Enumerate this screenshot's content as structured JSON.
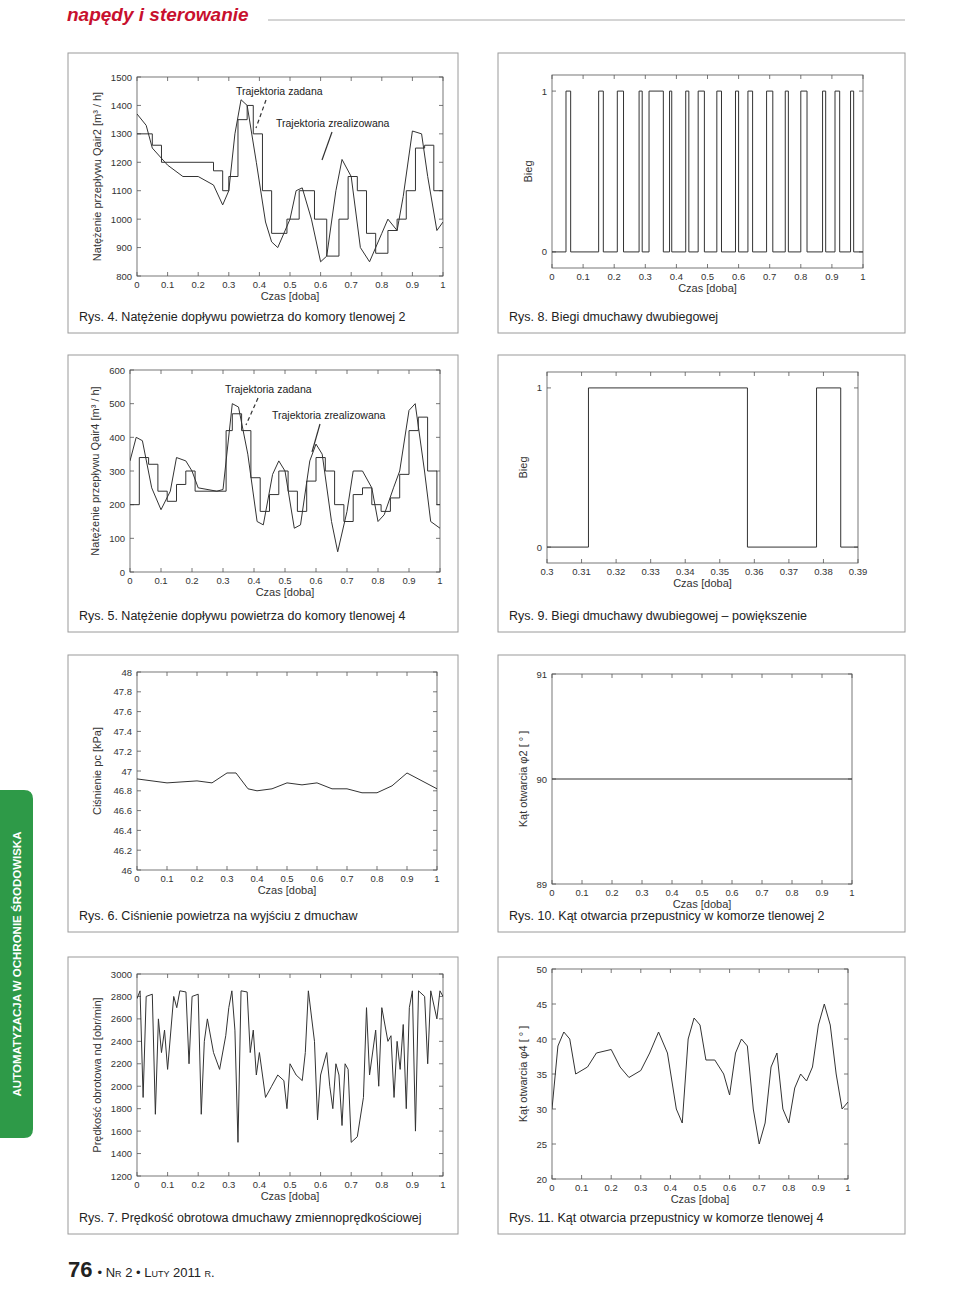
{
  "header": {
    "title": "napędy i sterowanie"
  },
  "side_label": "AUTOMATYZACJA W OCHRONIE ŚRODOWISKA",
  "footer": {
    "page": "76",
    "issue": "• Nr 2 • Luty 2011 r."
  },
  "chart_data": [
    {
      "type": "line",
      "title": "Rys. 4. Natężenie dopływu powietrza do komory tlenowej 2",
      "x_label": "Czas [doba]",
      "y_label": "Natężenie przepływu Qair2 [m³ / h]",
      "xlim": [
        0,
        1
      ],
      "xticks": [
        0,
        0.1,
        0.2,
        0.3,
        0.4,
        0.5,
        0.6,
        0.7,
        0.8,
        0.9,
        1
      ],
      "ylim": [
        800,
        1500
      ],
      "yticks": [
        800,
        900,
        1000,
        1100,
        1200,
        1300,
        1400,
        1500
      ],
      "grid": false,
      "color": "#333333",
      "series": [
        {
          "name": "Trajektoria zadana",
          "color": "#333333",
          "line_style": "solid",
          "x": [
            0,
            0.03,
            0.05,
            0.1,
            0.15,
            0.2,
            0.25,
            0.28,
            0.3,
            0.32,
            0.34,
            0.36,
            0.39,
            0.42,
            0.44,
            0.46,
            0.5,
            0.52,
            0.54,
            0.57,
            0.6,
            0.62,
            0.65,
            0.67,
            0.7,
            0.73,
            0.76,
            0.8,
            0.82,
            0.85,
            0.87,
            0.9,
            0.93,
            0.95,
            0.98,
            1
          ],
          "values": [
            1370,
            1330,
            1250,
            1190,
            1150,
            1150,
            1120,
            1050,
            1100,
            1300,
            1420,
            1400,
            1200,
            990,
            920,
            900,
            1000,
            1100,
            1110,
            1000,
            850,
            870,
            1100,
            1210,
            1150,
            900,
            850,
            950,
            1000,
            960,
            1080,
            1310,
            1300,
            1150,
            960,
            990
          ]
        },
        {
          "name": "Trajektoria zrealizowana",
          "color": "#333333",
          "line_style": "step",
          "x": [
            0,
            0.05,
            0.08,
            0.25,
            0.28,
            0.3,
            0.33,
            0.36,
            0.38,
            0.41,
            0.44,
            0.49,
            0.53,
            0.58,
            0.62,
            0.66,
            0.69,
            0.72,
            0.75,
            0.78,
            0.82,
            0.85,
            0.88,
            0.91,
            0.94,
            0.97,
            1
          ],
          "values": [
            1300,
            1260,
            1200,
            1170,
            1100,
            1150,
            1350,
            1400,
            1300,
            1100,
            950,
            1000,
            1100,
            1000,
            870,
            1000,
            1150,
            1100,
            950,
            880,
            960,
            1000,
            1100,
            1250,
            1260,
            1100,
            1000
          ]
        }
      ]
    },
    {
      "type": "line",
      "title": "Rys. 8. Biegi dmuchawy dwubiegowej",
      "x_label": "Czas [doba]",
      "y_label": "Bieg",
      "xlim": [
        0,
        1
      ],
      "xticks": [
        0,
        0.1,
        0.2,
        0.3,
        0.4,
        0.5,
        0.6,
        0.7,
        0.8,
        0.9,
        1
      ],
      "ylim": [
        -0.1,
        1.1
      ],
      "yticks": [
        0,
        1
      ],
      "grid": false,
      "color": "#333333",
      "series": [
        {
          "color": "#333333",
          "line_style": "step",
          "x": [
            0,
            0.045,
            0.06,
            0.15,
            0.165,
            0.21,
            0.23,
            0.28,
            0.29,
            0.312,
            0.358,
            0.378,
            0.385,
            0.43,
            0.44,
            0.47,
            0.49,
            0.53,
            0.545,
            0.59,
            0.6,
            0.63,
            0.645,
            0.69,
            0.71,
            0.75,
            0.76,
            0.8,
            0.82,
            0.87,
            0.88,
            0.91,
            0.925,
            0.96,
            0.97,
            1
          ],
          "values": [
            0,
            1,
            0,
            1,
            0,
            1,
            0,
            1,
            0,
            1,
            0,
            1,
            0,
            1,
            0,
            1,
            0,
            1,
            0,
            1,
            0,
            1,
            0,
            1,
            0,
            1,
            0,
            1,
            0,
            1,
            0,
            1,
            0,
            1,
            0,
            0
          ]
        }
      ]
    },
    {
      "type": "line",
      "title": "Rys. 5. Natężenie dopływu powietrza do komory tlenowej 4",
      "x_label": "Czas [doba]",
      "y_label": "Natężenie przepływu Qair4 [m³ / h]",
      "xlim": [
        0,
        1
      ],
      "xticks": [
        0,
        0.1,
        0.2,
        0.3,
        0.4,
        0.5,
        0.6,
        0.7,
        0.8,
        0.9,
        1
      ],
      "ylim": [
        0,
        600
      ],
      "yticks": [
        0,
        100,
        200,
        300,
        400,
        500,
        600
      ],
      "grid": false,
      "color": "#333333",
      "series": [
        {
          "name": "Trajektoria zadana",
          "color": "#333333",
          "line_style": "solid",
          "x": [
            0,
            0.02,
            0.04,
            0.07,
            0.1,
            0.13,
            0.15,
            0.18,
            0.2,
            0.22,
            0.28,
            0.3,
            0.33,
            0.35,
            0.38,
            0.41,
            0.43,
            0.46,
            0.48,
            0.5,
            0.53,
            0.55,
            0.58,
            0.6,
            0.62,
            0.65,
            0.67,
            0.7,
            0.72,
            0.75,
            0.78,
            0.8,
            0.82,
            0.85,
            0.87,
            0.9,
            0.92,
            0.95,
            0.97,
            1
          ],
          "values": [
            330,
            400,
            390,
            250,
            185,
            240,
            340,
            330,
            300,
            250,
            240,
            245,
            500,
            490,
            350,
            150,
            140,
            290,
            330,
            300,
            130,
            140,
            330,
            380,
            350,
            150,
            60,
            180,
            300,
            300,
            250,
            150,
            170,
            250,
            300,
            480,
            500,
            300,
            150,
            130
          ]
        },
        {
          "name": "Trajektoria zrealizowana",
          "color": "#333333",
          "line_style": "step",
          "x": [
            0,
            0.03,
            0.06,
            0.09,
            0.12,
            0.15,
            0.18,
            0.21,
            0.3,
            0.31,
            0.33,
            0.36,
            0.39,
            0.42,
            0.45,
            0.48,
            0.51,
            0.54,
            0.57,
            0.6,
            0.63,
            0.66,
            0.69,
            0.72,
            0.75,
            0.78,
            0.81,
            0.84,
            0.87,
            0.9,
            0.93,
            0.96,
            0.99,
            1
          ],
          "values": [
            200,
            340,
            320,
            240,
            210,
            260,
            300,
            240,
            240,
            420,
            470,
            420,
            280,
            180,
            230,
            300,
            240,
            180,
            270,
            340,
            300,
            200,
            150,
            230,
            250,
            200,
            180,
            220,
            290,
            420,
            460,
            300,
            200,
            200
          ]
        }
      ]
    },
    {
      "type": "line",
      "title": "Rys. 9. Biegi dmuchawy dwubiegowej – powiększenie",
      "x_label": "Czas [doba]",
      "y_label": "Bieg",
      "xlim": [
        0.3,
        0.39
      ],
      "xticks": [
        0.3,
        0.31,
        0.32,
        0.33,
        0.34,
        0.35,
        0.36,
        0.37,
        0.38,
        0.39
      ],
      "ylim": [
        -0.1,
        1.1
      ],
      "yticks": [
        0,
        1
      ],
      "grid": false,
      "color": "#333333",
      "series": [
        {
          "color": "#333333",
          "line_style": "step",
          "x": [
            0.3,
            0.312,
            0.358,
            0.378,
            0.385,
            0.39
          ],
          "values": [
            0,
            1,
            0,
            1,
            0,
            0
          ]
        }
      ]
    },
    {
      "type": "line",
      "title": "Rys. 6. Ciśnienie powietrza na wyjściu z dmuchaw",
      "x_label": "Czas [doba]",
      "y_label": "Ciśnienie pc [kPa]",
      "xlim": [
        0,
        1
      ],
      "xticks": [
        0,
        0.1,
        0.2,
        0.3,
        0.4,
        0.5,
        0.6,
        0.7,
        0.8,
        0.9,
        1
      ],
      "ylim": [
        46,
        48
      ],
      "yticks": [
        46,
        46.2,
        46.4,
        46.6,
        46.8,
        47,
        47.2,
        47.4,
        47.6,
        47.8,
        48
      ],
      "grid": false,
      "color": "#333333",
      "series": [
        {
          "color": "#333333",
          "line_style": "solid",
          "x": [
            0,
            0.05,
            0.1,
            0.2,
            0.25,
            0.3,
            0.33,
            0.37,
            0.4,
            0.45,
            0.5,
            0.55,
            0.6,
            0.65,
            0.7,
            0.75,
            0.8,
            0.85,
            0.9,
            0.95,
            1
          ],
          "values": [
            46.92,
            46.9,
            46.88,
            46.9,
            46.88,
            46.98,
            46.98,
            46.82,
            46.8,
            46.82,
            46.88,
            46.86,
            46.88,
            46.82,
            46.82,
            46.78,
            46.78,
            46.85,
            46.98,
            46.9,
            46.82
          ]
        }
      ]
    },
    {
      "type": "line",
      "title": "Rys. 10. Kąt otwarcia przepustnicy w komorze tlenowej 2",
      "x_label": "Czas [doba]",
      "y_label": "Kąt otwarcia φ2 [ ° ]",
      "xlim": [
        0,
        1
      ],
      "xticks": [
        0,
        0.1,
        0.2,
        0.3,
        0.4,
        0.5,
        0.6,
        0.7,
        0.8,
        0.9,
        1
      ],
      "ylim": [
        89,
        91
      ],
      "yticks": [
        89,
        90,
        91
      ],
      "grid": false,
      "color": "#333333",
      "series": [
        {
          "color": "#333333",
          "line_style": "solid",
          "x": [
            0,
            1
          ],
          "values": [
            90,
            90
          ]
        }
      ]
    },
    {
      "type": "line",
      "title": "Rys. 7. Prędkość obrotowa dmuchawy zmiennoprędkościowej",
      "x_label": "Czas [doba]",
      "y_label": "Prędkość obrotowa nd [obr/min]",
      "xlim": [
        0,
        1
      ],
      "xticks": [
        0,
        0.1,
        0.2,
        0.3,
        0.4,
        0.5,
        0.6,
        0.7,
        0.8,
        0.9,
        1
      ],
      "ylim": [
        1200,
        3000
      ],
      "yticks": [
        1200,
        1400,
        1600,
        1800,
        2000,
        2200,
        2400,
        2600,
        2800,
        3000
      ],
      "grid": false,
      "color": "#333333",
      "series": [
        {
          "color": "#333333",
          "line_style": "solid",
          "x": [
            0,
            0.01,
            0.02,
            0.03,
            0.05,
            0.06,
            0.07,
            0.08,
            0.09,
            0.1,
            0.12,
            0.13,
            0.14,
            0.16,
            0.17,
            0.18,
            0.2,
            0.21,
            0.22,
            0.23,
            0.25,
            0.27,
            0.29,
            0.3,
            0.31,
            0.32,
            0.33,
            0.34,
            0.36,
            0.37,
            0.38,
            0.39,
            0.4,
            0.42,
            0.44,
            0.46,
            0.48,
            0.49,
            0.5,
            0.52,
            0.54,
            0.55,
            0.56,
            0.58,
            0.59,
            0.6,
            0.62,
            0.63,
            0.64,
            0.65,
            0.66,
            0.67,
            0.68,
            0.69,
            0.7,
            0.72,
            0.74,
            0.75,
            0.76,
            0.78,
            0.79,
            0.8,
            0.82,
            0.83,
            0.84,
            0.85,
            0.86,
            0.87,
            0.88,
            0.89,
            0.9,
            0.91,
            0.92,
            0.94,
            0.95,
            0.96,
            0.98,
            0.99,
            1
          ],
          "values": [
            2780,
            2850,
            1900,
            2800,
            2820,
            1750,
            2600,
            2300,
            2500,
            2150,
            2800,
            2700,
            2850,
            2840,
            2200,
            2800,
            2820,
            1750,
            2400,
            2600,
            2300,
            2150,
            2450,
            2700,
            2850,
            2500,
            1500,
            2850,
            2840,
            2300,
            2500,
            2100,
            2300,
            1900,
            2000,
            2100,
            2050,
            1800,
            2200,
            2100,
            2050,
            2300,
            2850,
            2400,
            1700,
            2100,
            2300,
            2000,
            1800,
            2200,
            2100,
            1650,
            2200,
            2150,
            1500,
            1550,
            1900,
            2700,
            2100,
            2500,
            2000,
            2700,
            2400,
            2450,
            1900,
            2400,
            2150,
            2550,
            1800,
            2700,
            2850,
            1600,
            2850,
            2800,
            2200,
            2850,
            2600,
            2850,
            2800
          ]
        }
      ]
    },
    {
      "type": "line",
      "title": "Rys. 11. Kąt otwarcia przepustnicy w komorze tlenowej 4",
      "x_label": "Czas [doba]",
      "y_label": "Kąt otwarcia φ4 [ ° ]",
      "xlim": [
        0,
        1
      ],
      "xticks": [
        0,
        0.1,
        0.2,
        0.3,
        0.4,
        0.5,
        0.6,
        0.7,
        0.8,
        0.9,
        1
      ],
      "ylim": [
        20,
        50
      ],
      "yticks": [
        20,
        25,
        30,
        35,
        40,
        45,
        50
      ],
      "grid": false,
      "color": "#333333",
      "series": [
        {
          "color": "#333333",
          "line_style": "solid",
          "x": [
            0,
            0.02,
            0.04,
            0.06,
            0.08,
            0.12,
            0.15,
            0.2,
            0.23,
            0.26,
            0.3,
            0.33,
            0.36,
            0.39,
            0.42,
            0.44,
            0.46,
            0.48,
            0.5,
            0.52,
            0.55,
            0.58,
            0.6,
            0.62,
            0.64,
            0.66,
            0.68,
            0.7,
            0.72,
            0.74,
            0.76,
            0.78,
            0.8,
            0.82,
            0.84,
            0.86,
            0.88,
            0.9,
            0.92,
            0.94,
            0.96,
            0.98,
            1
          ],
          "values": [
            30,
            39,
            41,
            40,
            35,
            36,
            38,
            38.5,
            36,
            34.5,
            35.5,
            38,
            41,
            38,
            30,
            28,
            40,
            43,
            42,
            37,
            37,
            35,
            32,
            38,
            40,
            39,
            30,
            25,
            28,
            36,
            38,
            30,
            28,
            33,
            35,
            34,
            36,
            42,
            45,
            42,
            35,
            30,
            31
          ]
        }
      ]
    }
  ]
}
